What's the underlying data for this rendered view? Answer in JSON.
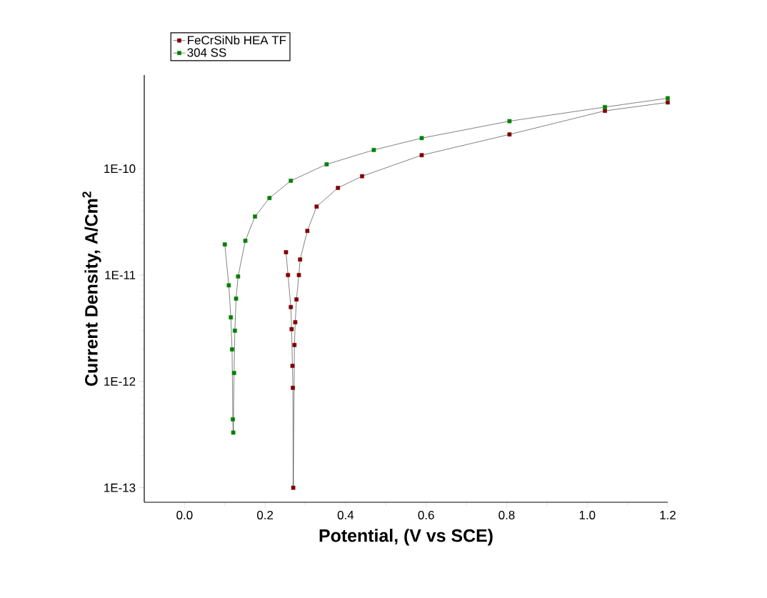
{
  "chart_data": {
    "type": "line",
    "xlabel": "Potential, (V vs SCE)",
    "ylabel": "Current Density, A/Cm$^{2}$",
    "log": "y",
    "legend": "top left",
    "marker": "square",
    "grid": false,
    "xlim": [
      -0.1,
      1.2
    ],
    "ylim": [
      7.3e-14,
      7.6e-10
    ],
    "xticks": [
      {
        "value": 0,
        "label": "0.0"
      },
      {
        "value": 0.2,
        "label": "0.2"
      },
      {
        "value": 0.4,
        "label": "0.4"
      },
      {
        "value": 0.6,
        "label": "0.6"
      },
      {
        "value": 0.8,
        "label": "0.8"
      },
      {
        "value": 1.0,
        "label": "1.0"
      },
      {
        "value": 1.2,
        "label": "1.2"
      }
    ],
    "yticks": [
      {
        "value": 1e-13,
        "label": "1E-13"
      },
      {
        "value": 1e-12,
        "label": "1E-12"
      },
      {
        "value": 1e-11,
        "label": "1E-11"
      },
      {
        "value": 1e-10,
        "label": "1E-10"
      }
    ],
    "series": [
      {
        "name": "FeCrSiNb HEA TF",
        "color": "#800000",
        "x": [
          0.252,
          0.257,
          0.264,
          0.266,
          0.268,
          0.269,
          0.27,
          0.273,
          0.275,
          0.278,
          0.284,
          0.287,
          0.305,
          0.328,
          0.381,
          0.441,
          0.589,
          0.807,
          1.044,
          1.2
        ],
        "values": [
          1.64e-11,
          1e-11,
          5e-12,
          3.1e-12,
          1.4e-12,
          8.7e-13,
          1e-13,
          2.2e-12,
          3.6e-12,
          5.9e-12,
          1e-11,
          1.4e-11,
          2.6e-11,
          4.4e-11,
          6.6e-11,
          8.5e-11,
          1.34e-10,
          2.1e-10,
          3.5e-10,
          4.2e-10
        ]
      },
      {
        "name": "304 SS",
        "color": "#008000",
        "x": [
          0.1,
          0.11,
          0.115,
          0.118,
          0.12,
          0.121,
          0.123,
          0.125,
          0.128,
          0.133,
          0.151,
          0.175,
          0.211,
          0.264,
          0.353,
          0.47,
          0.589,
          0.807,
          1.044,
          1.2
        ],
        "values": [
          1.94e-11,
          8e-12,
          4e-12,
          2e-12,
          4.4e-13,
          3.3e-13,
          1.2e-12,
          3e-12,
          6e-12,
          9.7e-12,
          2.1e-11,
          3.55e-11,
          5.3e-11,
          7.7e-11,
          1.1e-10,
          1.5e-10,
          1.94e-10,
          2.8e-10,
          3.8e-10,
          4.6e-10
        ]
      }
    ]
  }
}
